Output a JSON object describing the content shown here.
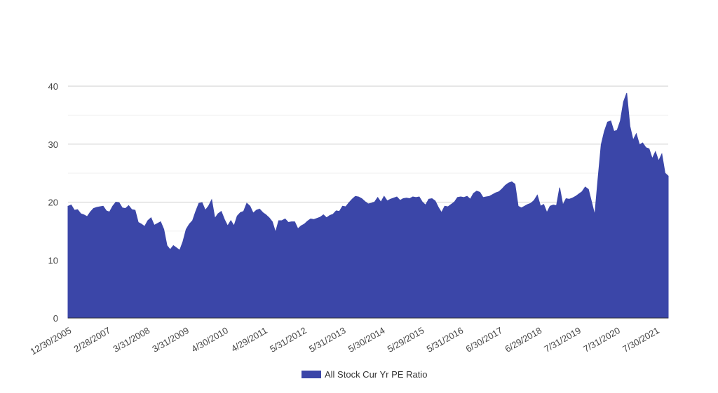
{
  "chart_data": {
    "type": "area",
    "title": "",
    "xlabel": "",
    "ylabel": "",
    "ylim": [
      0,
      40
    ],
    "yticks": [
      "0",
      "10",
      "20",
      "30",
      "40"
    ],
    "minor_gridlines": true,
    "x_tick_labels": [
      "12/30/2005",
      "2/28/2007",
      "3/31/2008",
      "3/31/2009",
      "4/30/2010",
      "4/29/2011",
      "5/31/2012",
      "5/31/2013",
      "5/30/2014",
      "5/29/2015",
      "5/31/2016",
      "6/30/2017",
      "6/29/2018",
      "7/31/2019",
      "7/31/2020",
      "7/30/2021"
    ],
    "legend": {
      "placement": "bottom"
    },
    "series": [
      {
        "name": "All Stock Cur Yr PE Ratio",
        "color": "#3b46a8",
        "values": [
          19.3,
          19.5,
          18.6,
          18.7,
          18.0,
          17.8,
          17.5,
          18.3,
          18.9,
          19.1,
          19.2,
          19.3,
          18.5,
          18.3,
          19.3,
          20.0,
          19.9,
          19.0,
          18.9,
          19.4,
          18.7,
          18.6,
          16.5,
          16.2,
          15.8,
          16.8,
          17.3,
          16.0,
          16.3,
          16.6,
          15.3,
          12.5,
          11.8,
          12.5,
          12.1,
          11.7,
          13.2,
          15.3,
          16.2,
          16.8,
          18.4,
          19.8,
          19.9,
          18.6,
          19.3,
          20.4,
          17.2,
          18.0,
          18.4,
          17.0,
          15.9,
          16.8,
          15.9,
          17.6,
          18.2,
          18.4,
          19.8,
          19.3,
          18.1,
          18.6,
          18.8,
          18.2,
          17.8,
          17.3,
          16.6,
          14.8,
          16.8,
          16.8,
          17.1,
          16.5,
          16.6,
          16.6,
          15.4,
          15.9,
          16.2,
          16.7,
          17.1,
          17.0,
          17.2,
          17.4,
          17.8,
          17.3,
          17.7,
          17.9,
          18.5,
          18.4,
          19.3,
          19.2,
          19.9,
          20.5,
          21.0,
          20.9,
          20.6,
          20.1,
          19.7,
          19.8,
          20.0,
          20.8,
          20.0,
          21.0,
          20.2,
          20.5,
          20.7,
          20.9,
          20.3,
          20.6,
          20.7,
          20.6,
          20.9,
          20.8,
          20.9,
          20.0,
          19.5,
          20.5,
          20.6,
          20.2,
          19.1,
          18.2,
          19.3,
          19.2,
          19.6,
          20.0,
          20.8,
          20.9,
          20.8,
          21.0,
          20.5,
          21.5,
          21.9,
          21.7,
          20.8,
          20.9,
          21.0,
          21.3,
          21.6,
          21.8,
          22.3,
          22.9,
          23.3,
          23.5,
          23.1,
          19.3,
          19.0,
          19.3,
          19.6,
          19.8,
          20.3,
          21.2,
          19.3,
          19.6,
          18.2,
          19.3,
          19.5,
          19.4,
          22.5,
          19.5,
          20.6,
          20.5,
          20.7,
          21.0,
          21.4,
          21.8,
          22.6,
          22.2,
          20.0,
          17.8,
          24.0,
          29.9,
          32.2,
          33.8,
          34.0,
          32.2,
          32.4,
          34.0,
          37.3,
          38.8,
          33.1,
          30.7,
          31.8,
          29.9,
          30.2,
          29.4,
          29.2,
          27.5,
          28.7,
          27.1,
          28.3,
          25.0,
          24.5
        ]
      }
    ]
  }
}
